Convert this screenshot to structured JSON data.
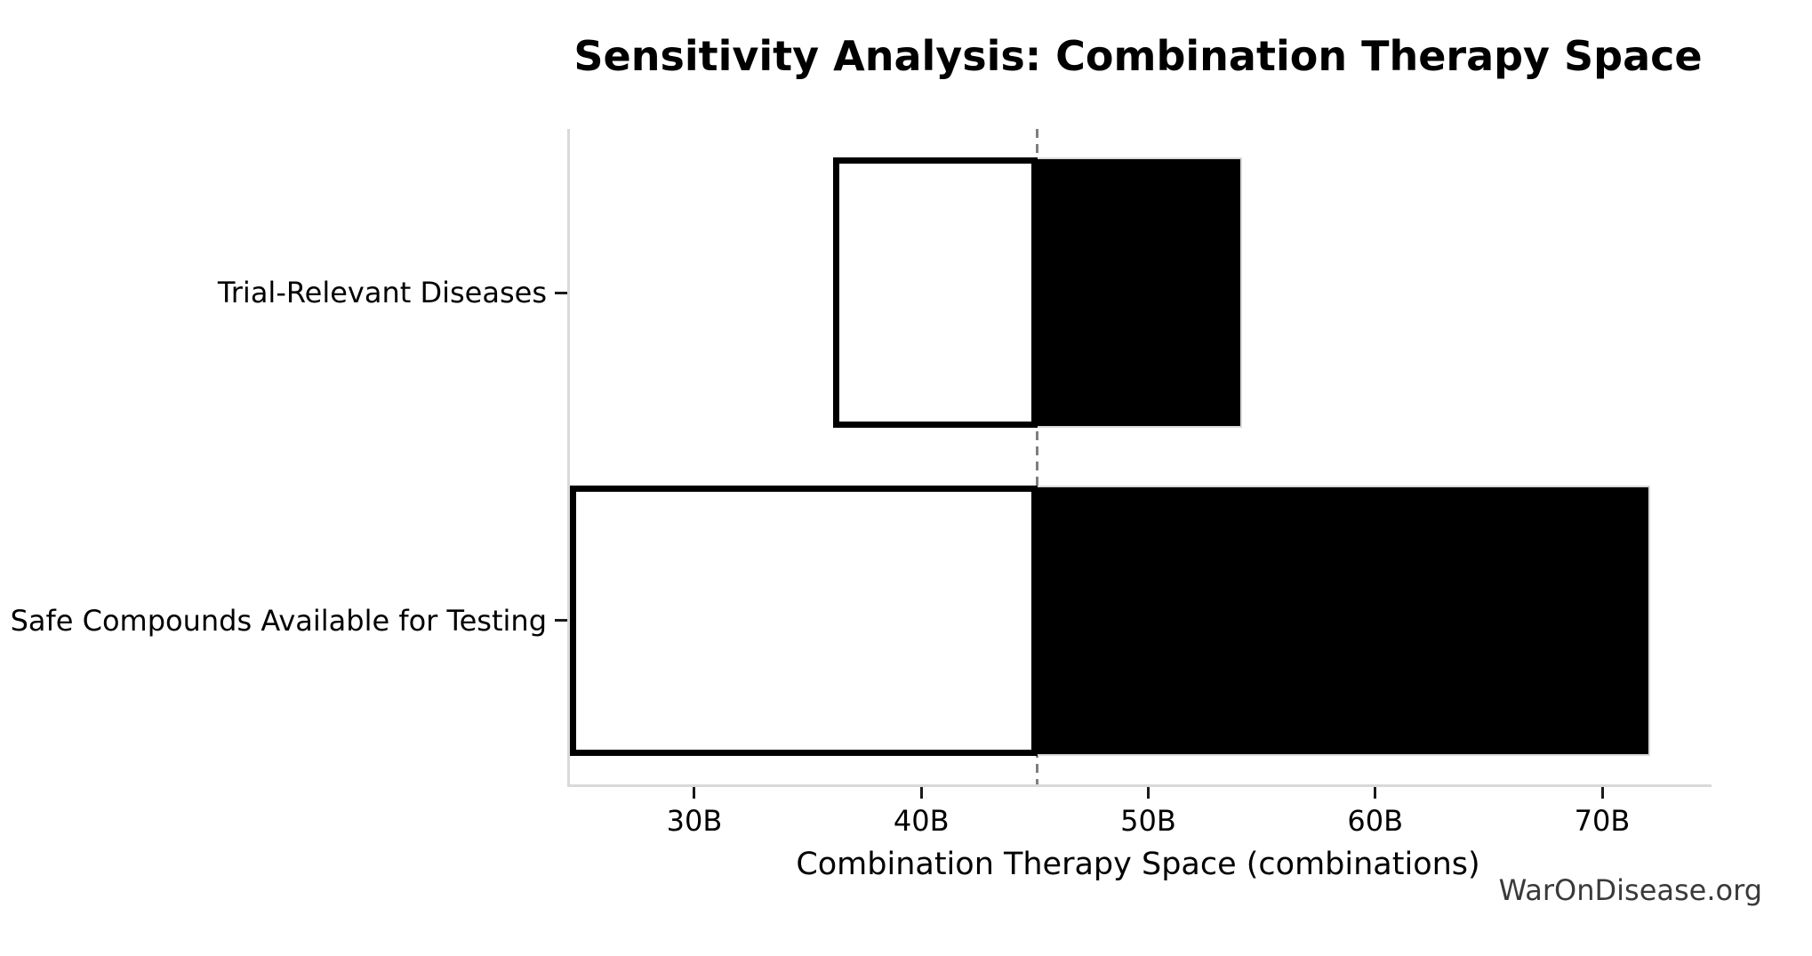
{
  "title": "Sensitivity Analysis: Combination Therapy Space",
  "watermark": "WarOnDisease.org",
  "chart_data": {
    "type": "bar",
    "orientation": "horizontal",
    "subtype": "tornado-sensitivity",
    "title": "Sensitivity Analysis: Combination Therapy Space",
    "xlabel": "Combination Therapy Space (combinations)",
    "ylabel": "",
    "unit": "B (billions of combinations)",
    "categories": [
      "Trial-Relevant Diseases",
      "Safe Compounds Available for Testing"
    ],
    "bars": [
      {
        "category": "Trial-Relevant Diseases",
        "low": 36,
        "high": 54
      },
      {
        "category": "Safe Compounds Available for Testing",
        "low": 24.4,
        "high": 72,
        "low_clipped_at_axis": true
      }
    ],
    "baseline": 45,
    "baseline_style": "vertical dashed gray line",
    "x_ticks": [
      {
        "value": 30,
        "label": "30B"
      },
      {
        "value": 40,
        "label": "40B"
      },
      {
        "value": 50,
        "label": "50B"
      },
      {
        "value": 60,
        "label": "60B"
      },
      {
        "value": 70,
        "label": "70B"
      }
    ],
    "xlim": [
      24.4,
      74.7
    ],
    "grid": false,
    "legend": false,
    "bar_height_fraction": 0.412,
    "colors": {
      "below_baseline_fill": "#ffffff",
      "above_baseline_fill": "#000000",
      "bar_edge": "#000000",
      "baseline_line": "#7f7f7f",
      "spine": "#d9d9d9",
      "tick_mark": "#1a1a1a",
      "text": "#000000",
      "watermark_text": "#3a3a3a",
      "background": "#ffffff"
    }
  }
}
